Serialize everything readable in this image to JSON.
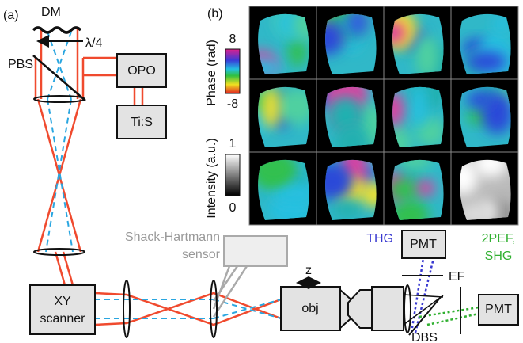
{
  "panel_a": {
    "label": "(a)",
    "dm": "DM",
    "quarter_wave": "λ/4",
    "pbs": "PBS",
    "opo": "OPO",
    "tis": "Ti:S",
    "scanner": [
      "XY",
      "scanner"
    ],
    "shack_hartmann": [
      "Shack-Hartmann",
      "sensor"
    ],
    "z": "z",
    "obj": "obj",
    "thg": "THG",
    "pmt_thg": "PMT",
    "ef": "EF",
    "nonlinear": [
      "2PEF,",
      "SHG"
    ],
    "pmt_nl": "PMT",
    "dbs": "DBS"
  },
  "panel_b": {
    "label": "(b)",
    "phase_bar": {
      "title": "Phase (rad)",
      "max": "8",
      "min": "-8"
    },
    "intensity_bar": {
      "title": "Intensity (a.u.)",
      "max": "1",
      "min": "0"
    }
  }
}
